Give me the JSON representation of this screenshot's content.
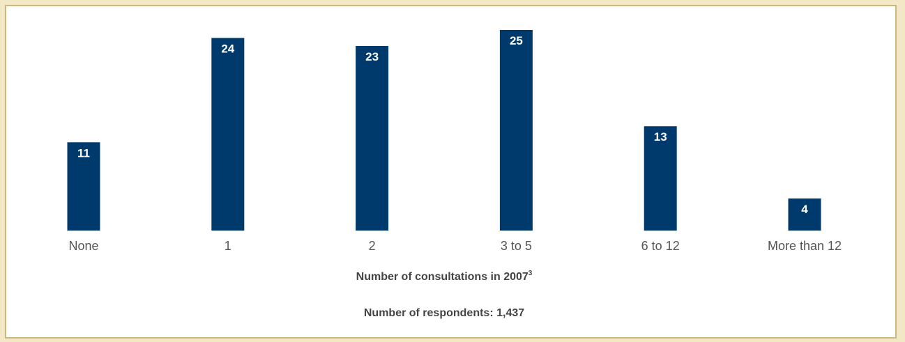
{
  "chart_data": {
    "type": "bar",
    "categories": [
      "None",
      "1",
      "2",
      "3 to 5",
      "6 to 12",
      "More than 12"
    ],
    "values": [
      11,
      24,
      23,
      25,
      13,
      4
    ],
    "xlabel": "Number of consultations in 2007",
    "xlabel_superscript": "3",
    "note": "Number of respondents: 1,437",
    "ylim": [
      0,
      25
    ],
    "grid": false,
    "legend": "none",
    "colors": {
      "bar": "#003a6c",
      "bar_label": "#ffffff",
      "background": "#f2e8c6"
    }
  }
}
